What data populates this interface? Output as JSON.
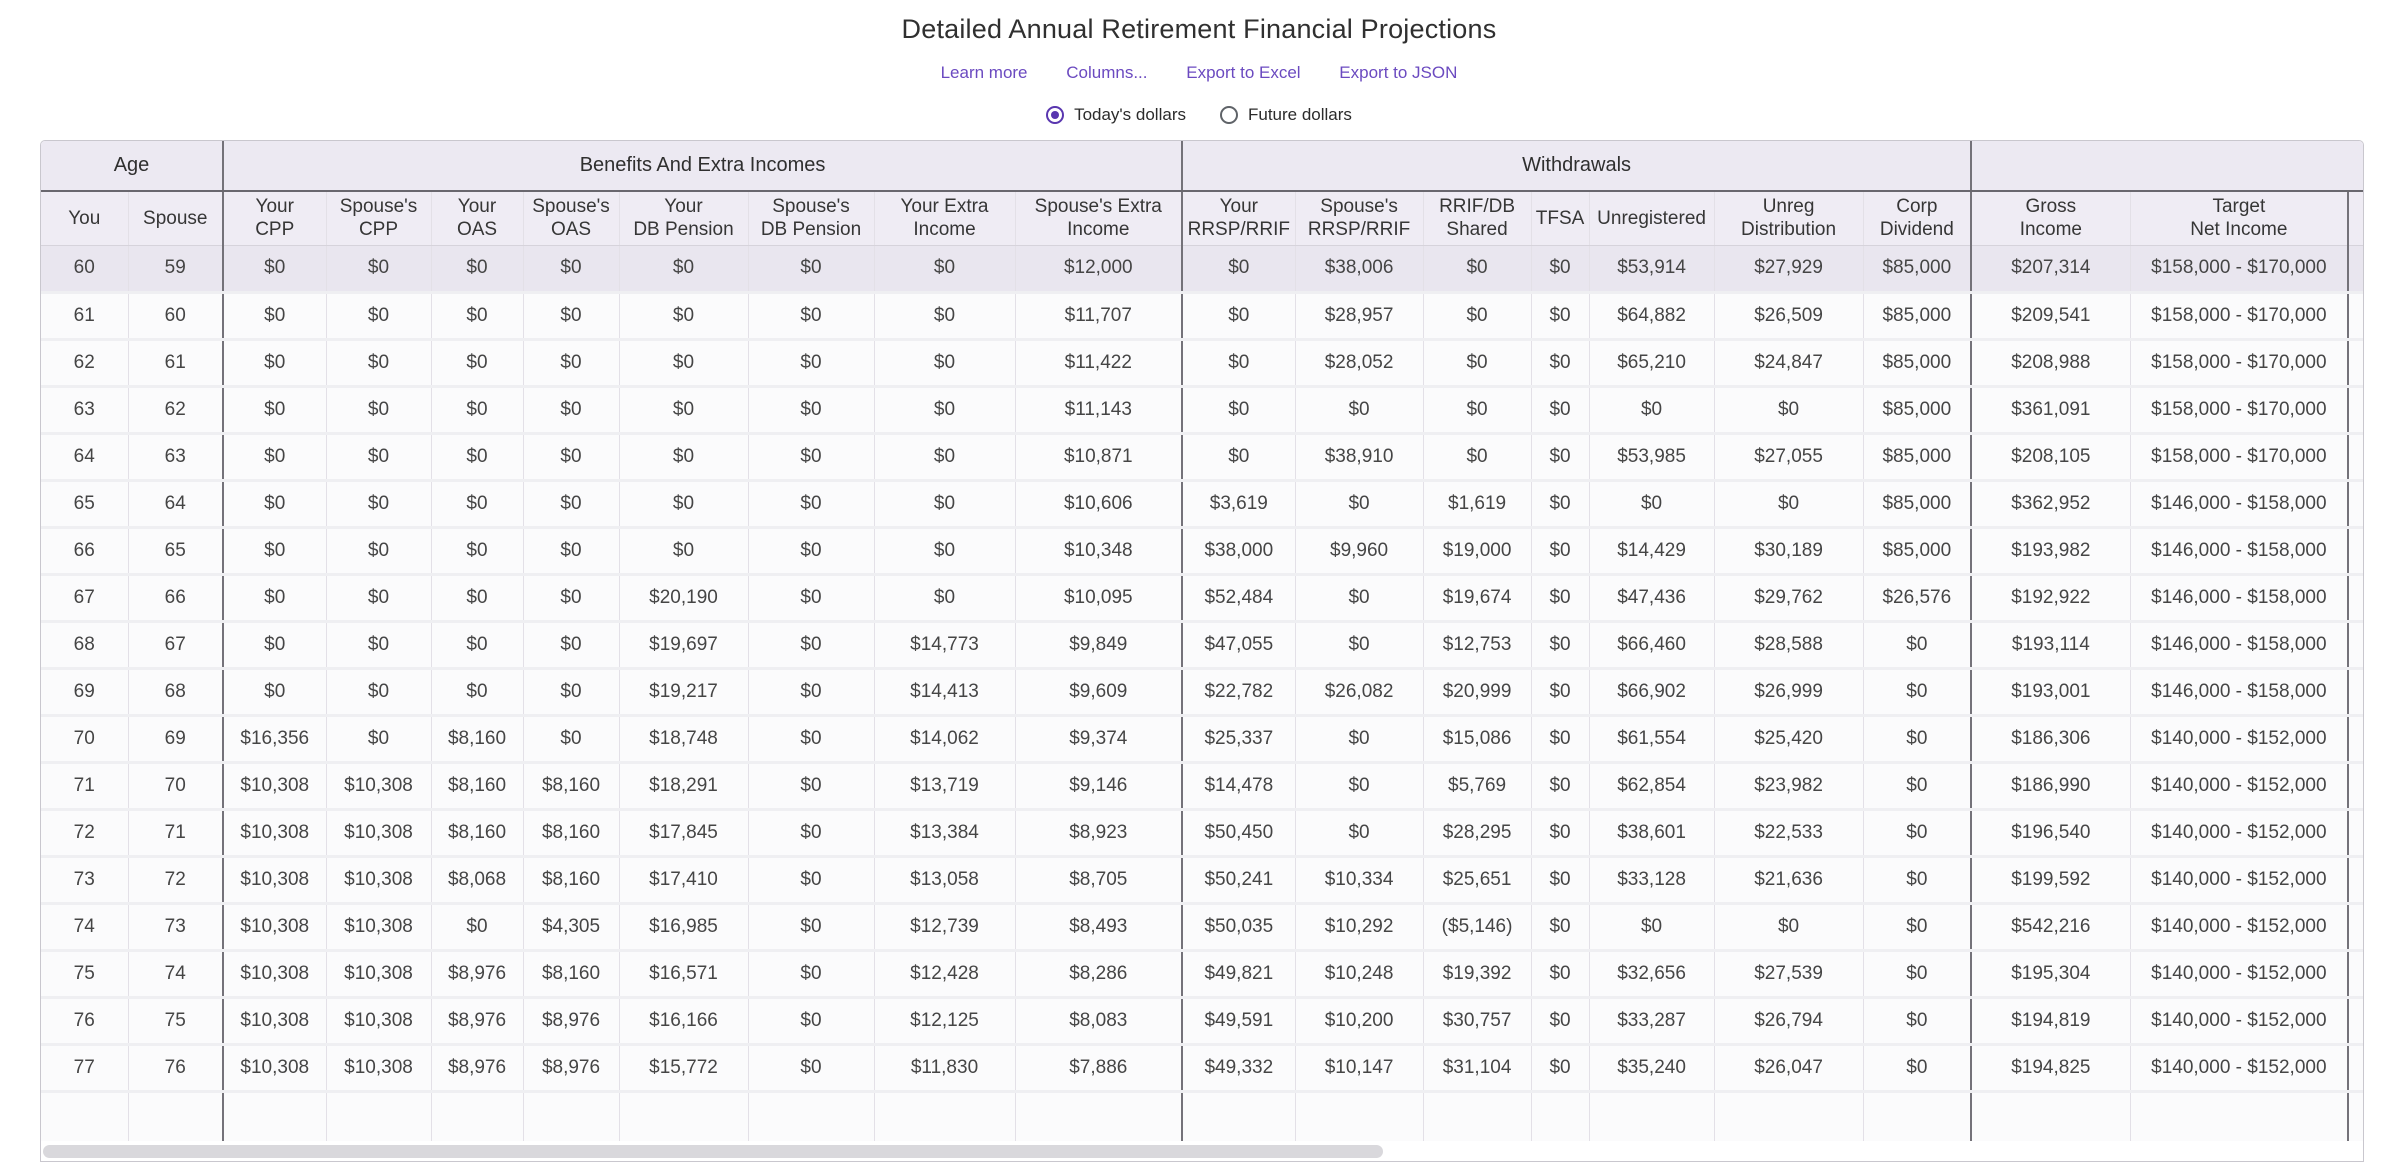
{
  "page": {
    "title": "Detailed Annual Retirement Financial Projections",
    "links": [
      "Learn more",
      "Columns...",
      "Export to Excel",
      "Export to JSON"
    ],
    "radios": [
      {
        "label": "Today's dollars",
        "selected": true
      },
      {
        "label": "Future dollars",
        "selected": false
      }
    ],
    "accent_color": "#6b4ac0",
    "radio_selected_color": "#5936af"
  },
  "table": {
    "groups": [
      {
        "label": "Age",
        "span": 2
      },
      {
        "label": "Benefits And Extra Incomes",
        "span": 8
      },
      {
        "label": "Withdrawals",
        "span": 7
      },
      {
        "label": "",
        "span": 2
      }
    ],
    "columns": [
      "You",
      "Spouse",
      "Your\nCPP",
      "Spouse's\nCPP",
      "Your\nOAS",
      "Spouse's\nOAS",
      "Your\nDB Pension",
      "Spouse's\nDB Pension",
      "Your Extra\nIncome",
      "Spouse's Extra\nIncome",
      "Your\nRRSP/RRIF",
      "Spouse's\nRRSP/RRIF",
      "RRIF/DB\nShared",
      "TFSA",
      "Unregistered",
      "Unreg\nDistribution",
      "Corp\nDividend",
      "Gross\nIncome",
      "Target\nNet Income"
    ],
    "rows": [
      [
        "60",
        "59",
        "$0",
        "$0",
        "$0",
        "$0",
        "$0",
        "$0",
        "$0",
        "$12,000",
        "$0",
        "$38,006",
        "$0",
        "$0",
        "$53,914",
        "$27,929",
        "$85,000",
        "$207,314",
        "$158,000 - $170,000"
      ],
      [
        "61",
        "60",
        "$0",
        "$0",
        "$0",
        "$0",
        "$0",
        "$0",
        "$0",
        "$11,707",
        "$0",
        "$28,957",
        "$0",
        "$0",
        "$64,882",
        "$26,509",
        "$85,000",
        "$209,541",
        "$158,000 - $170,000"
      ],
      [
        "62",
        "61",
        "$0",
        "$0",
        "$0",
        "$0",
        "$0",
        "$0",
        "$0",
        "$11,422",
        "$0",
        "$28,052",
        "$0",
        "$0",
        "$65,210",
        "$24,847",
        "$85,000",
        "$208,988",
        "$158,000 - $170,000"
      ],
      [
        "63",
        "62",
        "$0",
        "$0",
        "$0",
        "$0",
        "$0",
        "$0",
        "$0",
        "$11,143",
        "$0",
        "$0",
        "$0",
        "$0",
        "$0",
        "$0",
        "$85,000",
        "$361,091",
        "$158,000 - $170,000"
      ],
      [
        "64",
        "63",
        "$0",
        "$0",
        "$0",
        "$0",
        "$0",
        "$0",
        "$0",
        "$10,871",
        "$0",
        "$38,910",
        "$0",
        "$0",
        "$53,985",
        "$27,055",
        "$85,000",
        "$208,105",
        "$158,000 - $170,000"
      ],
      [
        "65",
        "64",
        "$0",
        "$0",
        "$0",
        "$0",
        "$0",
        "$0",
        "$0",
        "$10,606",
        "$3,619",
        "$0",
        "$1,619",
        "$0",
        "$0",
        "$0",
        "$85,000",
        "$362,952",
        "$146,000 - $158,000"
      ],
      [
        "66",
        "65",
        "$0",
        "$0",
        "$0",
        "$0",
        "$0",
        "$0",
        "$0",
        "$10,348",
        "$38,000",
        "$9,960",
        "$19,000",
        "$0",
        "$14,429",
        "$30,189",
        "$85,000",
        "$193,982",
        "$146,000 - $158,000"
      ],
      [
        "67",
        "66",
        "$0",
        "$0",
        "$0",
        "$0",
        "$20,190",
        "$0",
        "$0",
        "$10,095",
        "$52,484",
        "$0",
        "$19,674",
        "$0",
        "$47,436",
        "$29,762",
        "$26,576",
        "$192,922",
        "$146,000 - $158,000"
      ],
      [
        "68",
        "67",
        "$0",
        "$0",
        "$0",
        "$0",
        "$19,697",
        "$0",
        "$14,773",
        "$9,849",
        "$47,055",
        "$0",
        "$12,753",
        "$0",
        "$66,460",
        "$28,588",
        "$0",
        "$193,114",
        "$146,000 - $158,000"
      ],
      [
        "69",
        "68",
        "$0",
        "$0",
        "$0",
        "$0",
        "$19,217",
        "$0",
        "$14,413",
        "$9,609",
        "$22,782",
        "$26,082",
        "$20,999",
        "$0",
        "$66,902",
        "$26,999",
        "$0",
        "$193,001",
        "$146,000 - $158,000"
      ],
      [
        "70",
        "69",
        "$16,356",
        "$0",
        "$8,160",
        "$0",
        "$18,748",
        "$0",
        "$14,062",
        "$9,374",
        "$25,337",
        "$0",
        "$15,086",
        "$0",
        "$61,554",
        "$25,420",
        "$0",
        "$186,306",
        "$140,000 - $152,000"
      ],
      [
        "71",
        "70",
        "$10,308",
        "$10,308",
        "$8,160",
        "$8,160",
        "$18,291",
        "$0",
        "$13,719",
        "$9,146",
        "$14,478",
        "$0",
        "$5,769",
        "$0",
        "$62,854",
        "$23,982",
        "$0",
        "$186,990",
        "$140,000 - $152,000"
      ],
      [
        "72",
        "71",
        "$10,308",
        "$10,308",
        "$8,160",
        "$8,160",
        "$17,845",
        "$0",
        "$13,384",
        "$8,923",
        "$50,450",
        "$0",
        "$28,295",
        "$0",
        "$38,601",
        "$22,533",
        "$0",
        "$196,540",
        "$140,000 - $152,000"
      ],
      [
        "73",
        "72",
        "$10,308",
        "$10,308",
        "$8,068",
        "$8,160",
        "$17,410",
        "$0",
        "$13,058",
        "$8,705",
        "$50,241",
        "$10,334",
        "$25,651",
        "$0",
        "$33,128",
        "$21,636",
        "$0",
        "$199,592",
        "$140,000 - $152,000"
      ],
      [
        "74",
        "73",
        "$10,308",
        "$10,308",
        "$0",
        "$4,305",
        "$16,985",
        "$0",
        "$12,739",
        "$8,493",
        "$50,035",
        "$10,292",
        "($5,146)",
        "$0",
        "$0",
        "$0",
        "$0",
        "$542,216",
        "$140,000 - $152,000"
      ],
      [
        "75",
        "74",
        "$10,308",
        "$10,308",
        "$8,976",
        "$8,160",
        "$16,571",
        "$0",
        "$12,428",
        "$8,286",
        "$49,821",
        "$10,248",
        "$19,392",
        "$0",
        "$32,656",
        "$27,539",
        "$0",
        "$195,304",
        "$140,000 - $152,000"
      ],
      [
        "76",
        "75",
        "$10,308",
        "$10,308",
        "$8,976",
        "$8,976",
        "$16,166",
        "$0",
        "$12,125",
        "$8,083",
        "$49,591",
        "$10,200",
        "$30,757",
        "$0",
        "$33,287",
        "$26,794",
        "$0",
        "$194,819",
        "$140,000 - $152,000"
      ],
      [
        "77",
        "76",
        "$10,308",
        "$10,308",
        "$8,976",
        "$8,976",
        "$15,772",
        "$0",
        "$11,830",
        "$7,886",
        "$49,332",
        "$10,147",
        "$31,104",
        "$0",
        "$35,240",
        "$26,047",
        "$0",
        "$194,825",
        "$140,000 - $152,000"
      ]
    ]
  }
}
